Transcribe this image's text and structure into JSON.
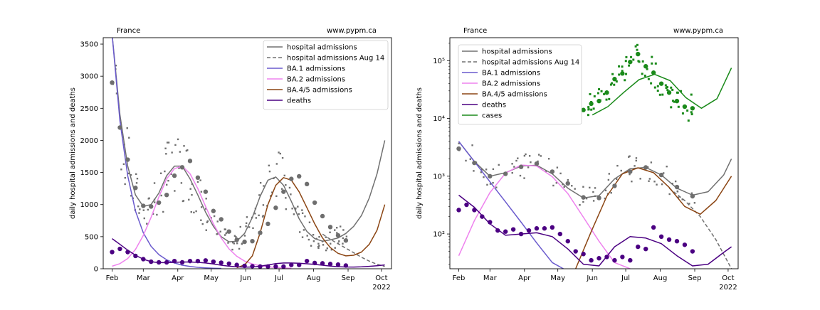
{
  "chart_data": [
    {
      "type": "line",
      "title": "France",
      "source": "www.pypm.ca",
      "ylabel": "daily hospital admissions and deaths",
      "yscale": "linear",
      "ylim": [
        0,
        3600
      ],
      "yticks": [
        0,
        500,
        1000,
        1500,
        2000,
        2500,
        3000,
        3500
      ],
      "xlim": [
        "2022-01-24",
        "2022-10-10"
      ],
      "xticks": [
        "Feb",
        "Mar",
        "Apr",
        "May",
        "Jun",
        "Jul",
        "Aug",
        "Sep",
        "Oct"
      ],
      "xyear": "2022",
      "legend_position": "top-right",
      "legend": [
        "hospital admissions",
        "hospital admissions Aug 14",
        "BA.1 admissions",
        "BA.2 admissions",
        "BA.4/5 admissions",
        "deaths"
      ],
      "series": [
        {
          "name": "hospital admissions",
          "color": "#707070",
          "x": [
            "2022-02-01",
            "2022-02-08",
            "2022-02-15",
            "2022-02-22",
            "2022-03-01",
            "2022-03-08",
            "2022-03-15",
            "2022-03-22",
            "2022-03-29",
            "2022-04-05",
            "2022-04-12",
            "2022-04-19",
            "2022-04-26",
            "2022-05-03",
            "2022-05-10",
            "2022-05-17",
            "2022-05-24",
            "2022-05-31",
            "2022-06-07",
            "2022-06-14",
            "2022-06-21",
            "2022-06-28",
            "2022-07-05",
            "2022-07-12",
            "2022-07-19",
            "2022-07-26",
            "2022-08-02",
            "2022-08-09",
            "2022-08-16",
            "2022-08-23",
            "2022-08-30",
            "2022-09-06",
            "2022-09-13",
            "2022-09-20",
            "2022-09-27",
            "2022-10-04"
          ],
          "values": [
            3650,
            2400,
            1600,
            1150,
            970,
            1000,
            1180,
            1450,
            1600,
            1600,
            1400,
            1150,
            880,
            660,
            500,
            420,
            430,
            550,
            800,
            1130,
            1380,
            1430,
            1300,
            1050,
            780,
            580,
            470,
            430,
            450,
            480,
            550,
            660,
            830,
            1100,
            1480,
            2000
          ]
        },
        {
          "name": "hospital admissions Aug 14",
          "color": "#707070",
          "dashed": true,
          "x": [
            "2022-08-09",
            "2022-08-16",
            "2022-08-23",
            "2022-08-30",
            "2022-09-06",
            "2022-09-13",
            "2022-09-20",
            "2022-09-27",
            "2022-10-04"
          ],
          "values": [
            540,
            460,
            390,
            320,
            250,
            180,
            120,
            70,
            35
          ]
        },
        {
          "name": "BA.1 admissions",
          "color": "#6a5acd",
          "x": [
            "2022-02-01",
            "2022-02-08",
            "2022-02-15",
            "2022-02-22",
            "2022-03-01",
            "2022-03-08",
            "2022-03-15",
            "2022-03-22",
            "2022-03-29",
            "2022-04-05",
            "2022-04-12",
            "2022-04-19",
            "2022-04-26",
            "2022-05-03",
            "2022-05-10"
          ],
          "values": [
            3650,
            2300,
            1450,
            900,
            560,
            350,
            220,
            140,
            90,
            55,
            35,
            22,
            14,
            9,
            5
          ]
        },
        {
          "name": "BA.2 admissions",
          "color": "#ee82ee",
          "x": [
            "2022-02-01",
            "2022-02-08",
            "2022-02-15",
            "2022-02-22",
            "2022-03-01",
            "2022-03-08",
            "2022-03-15",
            "2022-03-22",
            "2022-03-29",
            "2022-04-05",
            "2022-04-12",
            "2022-04-19",
            "2022-04-26",
            "2022-05-03",
            "2022-05-10",
            "2022-05-17",
            "2022-05-24",
            "2022-05-31",
            "2022-06-07",
            "2022-06-14",
            "2022-06-21",
            "2022-06-28",
            "2022-07-05",
            "2022-07-12"
          ],
          "values": [
            40,
            80,
            160,
            300,
            520,
            800,
            1120,
            1400,
            1560,
            1600,
            1480,
            1250,
            970,
            700,
            480,
            310,
            195,
            120,
            75,
            45,
            30,
            20,
            12,
            8
          ]
        },
        {
          "name": "BA.4/5 admissions",
          "color": "#8b4513",
          "x": [
            "2022-05-24",
            "2022-05-31",
            "2022-06-07",
            "2022-06-14",
            "2022-06-21",
            "2022-06-28",
            "2022-07-05",
            "2022-07-12",
            "2022-07-19",
            "2022-07-26",
            "2022-08-02",
            "2022-08-09",
            "2022-08-16",
            "2022-08-23",
            "2022-08-30",
            "2022-09-06",
            "2022-09-13",
            "2022-09-20",
            "2022-09-27",
            "2022-10-04"
          ],
          "values": [
            15,
            60,
            200,
            560,
            1000,
            1300,
            1420,
            1380,
            1200,
            950,
            700,
            480,
            330,
            240,
            200,
            210,
            260,
            380,
            600,
            1000
          ]
        },
        {
          "name": "deaths",
          "color": "#4b0082",
          "x": [
            "2022-02-01",
            "2022-02-08",
            "2022-02-15",
            "2022-02-22",
            "2022-03-01",
            "2022-03-08",
            "2022-03-15",
            "2022-03-22",
            "2022-03-29",
            "2022-04-05",
            "2022-04-12",
            "2022-04-19",
            "2022-04-26",
            "2022-05-03",
            "2022-05-10",
            "2022-05-17",
            "2022-05-24",
            "2022-05-31",
            "2022-06-07",
            "2022-06-14",
            "2022-06-21",
            "2022-06-28",
            "2022-07-05",
            "2022-07-12",
            "2022-07-19",
            "2022-07-26",
            "2022-08-02",
            "2022-08-09",
            "2022-08-16",
            "2022-08-23",
            "2022-08-30",
            "2022-09-06",
            "2022-09-13",
            "2022-09-20",
            "2022-09-27",
            "2022-10-04"
          ],
          "values": [
            470,
            380,
            290,
            210,
            150,
            110,
            95,
            95,
            100,
            105,
            105,
            100,
            90,
            75,
            55,
            40,
            30,
            25,
            28,
            40,
            60,
            80,
            90,
            90,
            85,
            78,
            68,
            55,
            42,
            32,
            28,
            27,
            30,
            38,
            48,
            60
          ]
        }
      ],
      "points_hospital": {
        "x": [
          "2022-02-01",
          "2022-02-08",
          "2022-02-15",
          "2022-02-22",
          "2022-03-01",
          "2022-03-08",
          "2022-03-15",
          "2022-03-22",
          "2022-03-29",
          "2022-04-05",
          "2022-04-12",
          "2022-04-19",
          "2022-04-26",
          "2022-05-03",
          "2022-05-10",
          "2022-05-17",
          "2022-05-24",
          "2022-05-31",
          "2022-06-07",
          "2022-06-14",
          "2022-06-21",
          "2022-06-28",
          "2022-07-05",
          "2022-07-12",
          "2022-07-19",
          "2022-07-26",
          "2022-08-02",
          "2022-08-09",
          "2022-08-16",
          "2022-08-23",
          "2022-08-30"
        ],
        "values": [
          2900,
          2200,
          1700,
          1260,
          980,
          970,
          1030,
          1150,
          1450,
          1580,
          1680,
          1420,
          1200,
          900,
          770,
          580,
          450,
          420,
          430,
          560,
          700,
          950,
          1200,
          1400,
          1440,
          1320,
          1030,
          820,
          650,
          520,
          440
        ]
      },
      "points_deaths": {
        "x": [
          "2022-02-01",
          "2022-02-08",
          "2022-02-15",
          "2022-02-22",
          "2022-03-01",
          "2022-03-08",
          "2022-03-15",
          "2022-03-22",
          "2022-03-29",
          "2022-04-05",
          "2022-04-12",
          "2022-04-19",
          "2022-04-26",
          "2022-05-03",
          "2022-05-10",
          "2022-05-17",
          "2022-05-24",
          "2022-05-31",
          "2022-06-07",
          "2022-06-14",
          "2022-06-21",
          "2022-06-28",
          "2022-07-05",
          "2022-07-12",
          "2022-07-19",
          "2022-07-26",
          "2022-08-02",
          "2022-08-09",
          "2022-08-16",
          "2022-08-23",
          "2022-08-30"
        ],
        "values": [
          260,
          310,
          260,
          200,
          150,
          110,
          100,
          100,
          120,
          100,
          120,
          120,
          130,
          110,
          95,
          80,
          60,
          45,
          40,
          35,
          35,
          35,
          35,
          60,
          60,
          120,
          90,
          85,
          75,
          65,
          50
        ]
      }
    },
    {
      "type": "line",
      "title": "France",
      "source": "www.pypm.ca",
      "ylabel": "daily hospital admissions and deaths",
      "yscale": "log",
      "ylim": [
        25,
        250000
      ],
      "yticks": [
        100,
        1000,
        10000,
        100000
      ],
      "ytick_labels": [
        "10²",
        "10³",
        "10⁴",
        "10⁵"
      ],
      "xlim": [
        "2022-01-24",
        "2022-10-10"
      ],
      "xticks": [
        "Feb",
        "Mar",
        "Apr",
        "May",
        "Jun",
        "Jul",
        "Aug",
        "Sep",
        "Oct"
      ],
      "xyear": "2022",
      "legend_position": "top-left",
      "legend": [
        "hospital admissions",
        "hospital admissions Aug 14",
        "BA.1 admissions",
        "BA.2 admissions",
        "BA.4/5 admissions",
        "deaths",
        "cases"
      ],
      "series": [
        {
          "name": "hospital admissions",
          "color": "#707070",
          "x": [
            "2022-02-01",
            "2022-02-15",
            "2022-03-01",
            "2022-03-15",
            "2022-03-29",
            "2022-04-12",
            "2022-04-26",
            "2022-05-10",
            "2022-05-24",
            "2022-06-07",
            "2022-06-21",
            "2022-07-05",
            "2022-07-19",
            "2022-08-02",
            "2022-08-16",
            "2022-08-30",
            "2022-09-13",
            "2022-09-27",
            "2022-10-04"
          ],
          "values": [
            4000,
            1800,
            1000,
            1150,
            1500,
            1550,
            1100,
            620,
            420,
            460,
            900,
            1350,
            1420,
            1050,
            620,
            470,
            540,
            1050,
            2000
          ]
        },
        {
          "name": "hospital admissions Aug 14",
          "color": "#707070",
          "dashed": true,
          "x": [
            "2022-08-09",
            "2022-08-23",
            "2022-09-06",
            "2022-09-20",
            "2022-10-04"
          ],
          "values": [
            620,
            380,
            200,
            80,
            25
          ]
        },
        {
          "name": "BA.1 admissions",
          "color": "#6a5acd",
          "x": [
            "2022-02-01",
            "2022-02-15",
            "2022-03-01",
            "2022-03-15",
            "2022-03-29",
            "2022-04-12",
            "2022-04-26",
            "2022-05-06"
          ],
          "values": [
            4000,
            1800,
            800,
            360,
            160,
            70,
            32,
            25
          ]
        },
        {
          "name": "BA.2 admissions",
          "color": "#ee82ee",
          "x": [
            "2022-02-01",
            "2022-02-15",
            "2022-03-01",
            "2022-03-15",
            "2022-03-29",
            "2022-04-12",
            "2022-04-26",
            "2022-05-10",
            "2022-05-24",
            "2022-06-07",
            "2022-06-21",
            "2022-07-05"
          ],
          "values": [
            42,
            170,
            520,
            1130,
            1560,
            1500,
            980,
            500,
            195,
            75,
            32,
            25
          ]
        },
        {
          "name": "BA.4/5 admissions",
          "color": "#8b4513",
          "x": [
            "2022-05-17",
            "2022-05-31",
            "2022-06-14",
            "2022-06-28",
            "2022-07-12",
            "2022-07-26",
            "2022-08-09",
            "2022-08-23",
            "2022-09-06",
            "2022-09-20",
            "2022-10-04"
          ],
          "values": [
            25,
            110,
            450,
            1100,
            1400,
            1150,
            640,
            300,
            220,
            380,
            1000
          ]
        },
        {
          "name": "deaths",
          "color": "#4b0082",
          "x": [
            "2022-02-01",
            "2022-02-15",
            "2022-03-01",
            "2022-03-15",
            "2022-03-29",
            "2022-04-12",
            "2022-04-26",
            "2022-05-10",
            "2022-05-24",
            "2022-06-07",
            "2022-06-21",
            "2022-07-05",
            "2022-07-19",
            "2022-08-02",
            "2022-08-16",
            "2022-08-30",
            "2022-09-13",
            "2022-09-27",
            "2022-10-04"
          ],
          "values": [
            470,
            290,
            150,
            95,
            100,
            105,
            90,
            55,
            30,
            28,
            60,
            90,
            85,
            68,
            42,
            28,
            30,
            48,
            60
          ]
        },
        {
          "name": "cases",
          "color": "#1a8a1a",
          "x": [
            "2022-06-01",
            "2022-06-15",
            "2022-06-29",
            "2022-07-13",
            "2022-07-27",
            "2022-08-10",
            "2022-08-24",
            "2022-09-07",
            "2022-09-21",
            "2022-10-04"
          ],
          "values": [
            11500,
            16000,
            28000,
            47000,
            58000,
            45000,
            23000,
            15000,
            22000,
            75000
          ]
        }
      ],
      "points_hospital": {
        "x": [
          "2022-02-01",
          "2022-02-15",
          "2022-03-01",
          "2022-03-15",
          "2022-03-29",
          "2022-04-12",
          "2022-04-26",
          "2022-05-10",
          "2022-05-24",
          "2022-06-07",
          "2022-06-21",
          "2022-07-05",
          "2022-07-19",
          "2022-08-02",
          "2022-08-16",
          "2022-08-30"
        ],
        "values": [
          3000,
          1700,
          1000,
          1100,
          1450,
          1650,
          1200,
          750,
          430,
          420,
          680,
          1200,
          1420,
          1050,
          650,
          450
        ]
      },
      "points_deaths": {
        "x": [
          "2022-02-01",
          "2022-02-08",
          "2022-02-15",
          "2022-02-22",
          "2022-03-01",
          "2022-03-08",
          "2022-03-15",
          "2022-03-22",
          "2022-03-29",
          "2022-04-05",
          "2022-04-12",
          "2022-04-19",
          "2022-04-26",
          "2022-05-03",
          "2022-05-10",
          "2022-05-17",
          "2022-05-24",
          "2022-05-31",
          "2022-06-07",
          "2022-06-14",
          "2022-06-21",
          "2022-06-28",
          "2022-07-05",
          "2022-07-12",
          "2022-07-19",
          "2022-07-26",
          "2022-08-02",
          "2022-08-09",
          "2022-08-16",
          "2022-08-23",
          "2022-08-30"
        ],
        "values": [
          260,
          320,
          260,
          200,
          160,
          115,
          110,
          120,
          100,
          115,
          125,
          125,
          130,
          100,
          75,
          50,
          45,
          35,
          38,
          40,
          35,
          40,
          35,
          60,
          55,
          130,
          90,
          80,
          75,
          65,
          50
        ]
      },
      "points_cases": {
        "x": [
          "2022-05-24",
          "2022-05-31",
          "2022-06-07",
          "2022-06-14",
          "2022-06-21",
          "2022-06-28",
          "2022-07-05",
          "2022-07-12",
          "2022-07-19",
          "2022-07-26",
          "2022-08-02",
          "2022-08-09",
          "2022-08-16",
          "2022-08-23",
          "2022-08-30"
        ],
        "values": [
          14000,
          18000,
          20000,
          28000,
          48000,
          60000,
          95000,
          130000,
          80000,
          62000,
          40000,
          28000,
          20000,
          16000,
          15000
        ]
      }
    }
  ]
}
